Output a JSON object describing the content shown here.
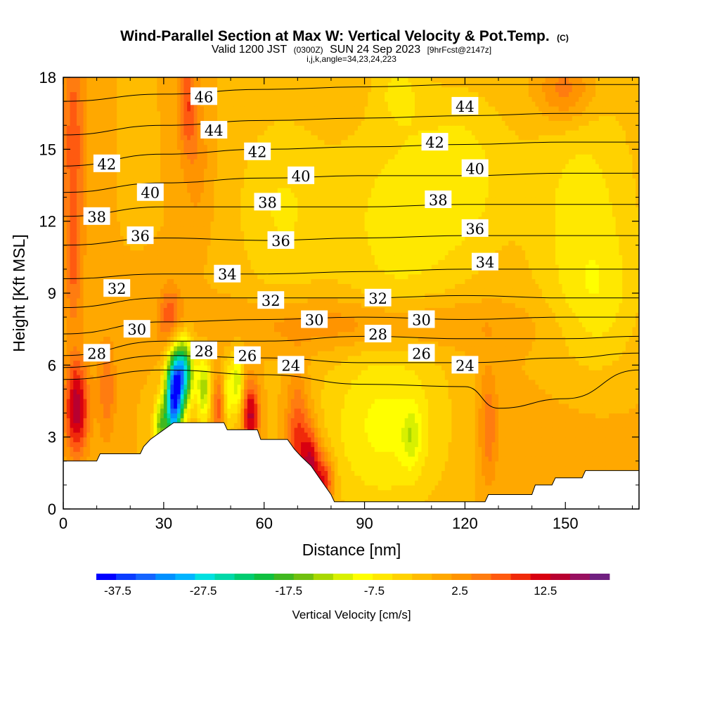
{
  "header": {
    "title": "Wind-Parallel Section at Max W: Vertical Velocity & Pot.Temp.",
    "copyright": "(C)",
    "subtitle_valid": "Valid 1200 JST",
    "subtitle_z": "(0300Z)",
    "subtitle_date": "SUN 24 Sep 2023",
    "subtitle_fcst": "[9hrFcst@2147z]",
    "params": "i,j,k,angle=34,23,24,223"
  },
  "chart_data": {
    "type": "heatmap",
    "title": "Wind-Parallel Section at Max W: Vertical Velocity & Pot.Temp.",
    "xlabel": "Distance [nm]",
    "ylabel": "Height [Kft MSL]",
    "xlim": [
      0,
      172
    ],
    "ylim": [
      0,
      18
    ],
    "x_ticks": [
      0,
      30,
      60,
      90,
      120,
      150
    ],
    "x_tick_labels": [
      "0",
      "30",
      "60",
      "90",
      "120",
      "150"
    ],
    "y_ticks": [
      0,
      3,
      6,
      9,
      12,
      15,
      18
    ],
    "y_tick_labels": [
      "0",
      "3",
      "6",
      "9",
      "12",
      "15",
      "18"
    ],
    "colorbar": {
      "title": "Vertical Velocity [cm/s]",
      "labels": [
        "-37.5",
        "-27.5",
        "-17.5",
        "-7.5",
        "2.5",
        "12.5"
      ],
      "label_values": [
        -37.5,
        -27.5,
        -17.5,
        -7.5,
        2.5,
        12.5
      ],
      "min": -40,
      "max": 20,
      "step": 2.5,
      "colors": [
        "#0000ff",
        "#0a3cff",
        "#1464ff",
        "#0090ff",
        "#00b4ff",
        "#00e0e0",
        "#00d8a8",
        "#00cc70",
        "#10c040",
        "#40b820",
        "#70c010",
        "#a8d800",
        "#d8f000",
        "#ffff00",
        "#ffe800",
        "#ffd200",
        "#ffbc00",
        "#ffa800",
        "#ff9400",
        "#ff7c10",
        "#ff5a10",
        "#f02a0a",
        "#d80010",
        "#b80030",
        "#981060",
        "#702080"
      ]
    },
    "terrain": [
      [
        0,
        2.0
      ],
      [
        10,
        2.0
      ],
      [
        11,
        2.3
      ],
      [
        23,
        2.3
      ],
      [
        24,
        2.6
      ],
      [
        26,
        2.9
      ],
      [
        29,
        3.2
      ],
      [
        32,
        3.5
      ],
      [
        33,
        3.6
      ],
      [
        48,
        3.6
      ],
      [
        49,
        3.3
      ],
      [
        58,
        3.3
      ],
      [
        59,
        2.9
      ],
      [
        67,
        2.9
      ],
      [
        69,
        2.5
      ],
      [
        71,
        2.2
      ],
      [
        74,
        1.8
      ],
      [
        77,
        1.2
      ],
      [
        80,
        0.6
      ],
      [
        81,
        0.3
      ],
      [
        126,
        0.3
      ],
      [
        127,
        0.6
      ],
      [
        140,
        0.6
      ],
      [
        141,
        1.0
      ],
      [
        146,
        1.0
      ],
      [
        147,
        1.3
      ],
      [
        155,
        1.3
      ],
      [
        156,
        1.6
      ],
      [
        172,
        1.6
      ]
    ],
    "theta_contours": [
      {
        "label": "24",
        "points": [
          [
            0,
            5.4
          ],
          [
            30,
            5.8
          ],
          [
            60,
            5.6
          ],
          [
            90,
            5.2
          ],
          [
            120,
            5.1
          ],
          [
            130,
            4.2
          ],
          [
            150,
            4.6
          ],
          [
            172,
            5.8
          ]
        ]
      },
      {
        "label": "26",
        "points": [
          [
            0,
            5.9
          ],
          [
            30,
            6.4
          ],
          [
            60,
            6.3
          ],
          [
            90,
            6.1
          ],
          [
            120,
            6.1
          ],
          [
            150,
            6.3
          ],
          [
            172,
            6.5
          ]
        ]
      },
      {
        "label": "28",
        "points": [
          [
            0,
            6.4
          ],
          [
            30,
            7.0
          ],
          [
            60,
            7.0
          ],
          [
            90,
            7.2
          ],
          [
            120,
            7.1
          ],
          [
            150,
            7.1
          ],
          [
            172,
            7.2
          ]
        ]
      },
      {
        "label": "30",
        "points": [
          [
            0,
            7.3
          ],
          [
            30,
            7.8
          ],
          [
            60,
            7.9
          ],
          [
            90,
            8.0
          ],
          [
            120,
            7.9
          ],
          [
            150,
            8.0
          ],
          [
            172,
            8.0
          ]
        ]
      },
      {
        "label": "32",
        "points": [
          [
            0,
            8.4
          ],
          [
            30,
            8.8
          ],
          [
            60,
            8.8
          ],
          [
            90,
            8.8
          ],
          [
            120,
            8.9
          ],
          [
            150,
            8.8
          ],
          [
            172,
            8.8
          ]
        ]
      },
      {
        "label": "34",
        "points": [
          [
            0,
            9.6
          ],
          [
            30,
            9.8
          ],
          [
            60,
            9.8
          ],
          [
            90,
            9.9
          ],
          [
            120,
            10.0
          ],
          [
            150,
            10.0
          ],
          [
            172,
            10.0
          ]
        ]
      },
      {
        "label": "36",
        "points": [
          [
            0,
            11.0
          ],
          [
            30,
            11.3
          ],
          [
            60,
            11.2
          ],
          [
            90,
            11.3
          ],
          [
            120,
            11.4
          ],
          [
            150,
            11.4
          ],
          [
            172,
            11.4
          ]
        ]
      },
      {
        "label": "38",
        "points": [
          [
            0,
            12.2
          ],
          [
            30,
            12.6
          ],
          [
            60,
            12.6
          ],
          [
            90,
            12.6
          ],
          [
            120,
            12.7
          ],
          [
            150,
            12.7
          ],
          [
            172,
            12.7
          ]
        ]
      },
      {
        "label": "40",
        "points": [
          [
            0,
            13.2
          ],
          [
            30,
            13.6
          ],
          [
            60,
            13.8
          ],
          [
            90,
            13.9
          ],
          [
            120,
            13.9
          ],
          [
            150,
            14.0
          ],
          [
            172,
            14.0
          ]
        ]
      },
      {
        "label": "42",
        "points": [
          [
            0,
            14.3
          ],
          [
            30,
            14.8
          ],
          [
            60,
            15.0
          ],
          [
            90,
            15.1
          ],
          [
            120,
            15.2
          ],
          [
            150,
            15.3
          ],
          [
            172,
            15.3
          ]
        ]
      },
      {
        "label": "44",
        "points": [
          [
            0,
            15.6
          ],
          [
            30,
            16.0
          ],
          [
            60,
            16.2
          ],
          [
            90,
            16.3
          ],
          [
            120,
            16.4
          ],
          [
            150,
            16.5
          ],
          [
            172,
            16.5
          ]
        ]
      },
      {
        "label": "46",
        "points": [
          [
            0,
            17.0
          ],
          [
            30,
            17.3
          ],
          [
            60,
            17.5
          ],
          [
            90,
            17.6
          ],
          [
            120,
            17.7
          ],
          [
            150,
            17.7
          ],
          [
            172,
            17.7
          ]
        ]
      }
    ],
    "contour_labels": [
      {
        "text": "46",
        "x": 42,
        "y": 17.2
      },
      {
        "text": "44",
        "x": 45,
        "y": 15.8
      },
      {
        "text": "44",
        "x": 120,
        "y": 16.8
      },
      {
        "text": "42",
        "x": 13,
        "y": 14.4
      },
      {
        "text": "42",
        "x": 58,
        "y": 14.9
      },
      {
        "text": "42",
        "x": 111,
        "y": 15.3
      },
      {
        "text": "40",
        "x": 26,
        "y": 13.2
      },
      {
        "text": "40",
        "x": 71,
        "y": 13.9
      },
      {
        "text": "40",
        "x": 123,
        "y": 14.2
      },
      {
        "text": "38",
        "x": 10,
        "y": 12.2
      },
      {
        "text": "38",
        "x": 61,
        "y": 12.8
      },
      {
        "text": "38",
        "x": 112,
        "y": 12.9
      },
      {
        "text": "36",
        "x": 23,
        "y": 11.4
      },
      {
        "text": "36",
        "x": 65,
        "y": 11.2
      },
      {
        "text": "36",
        "x": 123,
        "y": 11.7
      },
      {
        "text": "34",
        "x": 49,
        "y": 9.8
      },
      {
        "text": "34",
        "x": 126,
        "y": 10.3
      },
      {
        "text": "32",
        "x": 16,
        "y": 9.2
      },
      {
        "text": "32",
        "x": 62,
        "y": 8.7
      },
      {
        "text": "32",
        "x": 94,
        "y": 8.8
      },
      {
        "text": "30",
        "x": 22,
        "y": 7.5
      },
      {
        "text": "30",
        "x": 75,
        "y": 7.9
      },
      {
        "text": "30",
        "x": 107,
        "y": 7.9
      },
      {
        "text": "28",
        "x": 10,
        "y": 6.5
      },
      {
        "text": "28",
        "x": 42,
        "y": 6.6
      },
      {
        "text": "28",
        "x": 94,
        "y": 7.3
      },
      {
        "text": "26",
        "x": 55,
        "y": 6.4
      },
      {
        "text": "26",
        "x": 107,
        "y": 6.5
      },
      {
        "text": "24",
        "x": 68,
        "y": 6.0
      },
      {
        "text": "24",
        "x": 120,
        "y": 6.0
      }
    ],
    "w_field": {
      "background": 2.5,
      "features": [
        {
          "x": 4,
          "y": 4.2,
          "sx": 2.5,
          "sy": 1.4,
          "a": 17
        },
        {
          "x": 3,
          "y": 15.5,
          "sx": 2.5,
          "sy": 3.5,
          "a": 9
        },
        {
          "x": 3,
          "y": 10.0,
          "sx": 2.0,
          "sy": 2.0,
          "a": 6
        },
        {
          "x": 13,
          "y": 5.0,
          "sx": 2.0,
          "sy": 1.5,
          "a": 7
        },
        {
          "x": 33,
          "y": 4.6,
          "sx": 1.8,
          "sy": 1.3,
          "a": -38
        },
        {
          "x": 36,
          "y": 5.7,
          "sx": 2.0,
          "sy": 1.0,
          "a": -26
        },
        {
          "x": 29,
          "y": 3.5,
          "sx": 1.4,
          "sy": 0.8,
          "a": -15
        },
        {
          "x": 32,
          "y": 8.0,
          "sx": 2.5,
          "sy": 1.0,
          "a": 9
        },
        {
          "x": 37,
          "y": 17.0,
          "sx": 2.0,
          "sy": 1.5,
          "a": 9
        },
        {
          "x": 40,
          "y": 14.5,
          "sx": 3.0,
          "sy": 2.0,
          "a": 4
        },
        {
          "x": 42,
          "y": 5.0,
          "sx": 1.5,
          "sy": 1.0,
          "a": -14
        },
        {
          "x": 47,
          "y": 4.3,
          "sx": 1.8,
          "sy": 0.9,
          "a": 10
        },
        {
          "x": 49,
          "y": 4.6,
          "sx": 1.2,
          "sy": 1.0,
          "a": -12
        },
        {
          "x": 56,
          "y": 3.9,
          "sx": 1.8,
          "sy": 1.0,
          "a": 16
        },
        {
          "x": 52,
          "y": 5.3,
          "sx": 1.2,
          "sy": 1.0,
          "a": -12
        },
        {
          "x": 70,
          "y": 3.0,
          "sx": 2.5,
          "sy": 1.8,
          "a": 11
        },
        {
          "x": 74,
          "y": 2.0,
          "sx": 2.0,
          "sy": 1.0,
          "a": 14
        },
        {
          "x": 78,
          "y": 1.2,
          "sx": 2.0,
          "sy": 0.8,
          "a": 13
        },
        {
          "x": 96,
          "y": 3.3,
          "sx": 13.0,
          "sy": 2.5,
          "a": -8
        },
        {
          "x": 104,
          "y": 3.0,
          "sx": 2.0,
          "sy": 0.9,
          "a": -6
        },
        {
          "x": 127,
          "y": 3.5,
          "sx": 2.0,
          "sy": 1.8,
          "a": 7
        },
        {
          "x": 150,
          "y": 3.0,
          "sx": 18.0,
          "sy": 3.0,
          "a": 1
        },
        {
          "x": 100,
          "y": 12.0,
          "sx": 14.0,
          "sy": 3.5,
          "a": -6
        },
        {
          "x": 155,
          "y": 12.5,
          "sx": 12.0,
          "sy": 4.0,
          "a": -6
        },
        {
          "x": 120,
          "y": 14.0,
          "sx": 10.0,
          "sy": 2.5,
          "a": -5
        },
        {
          "x": 65,
          "y": 12.5,
          "sx": 10.0,
          "sy": 3.0,
          "a": -5
        },
        {
          "x": 90,
          "y": 7.7,
          "sx": 30.0,
          "sy": 0.8,
          "a": 6
        },
        {
          "x": 150,
          "y": 17.5,
          "sx": 6.0,
          "sy": 1.0,
          "a": 8
        },
        {
          "x": 100,
          "y": 17.5,
          "sx": 5.0,
          "sy": 1.0,
          "a": -4
        },
        {
          "x": 160,
          "y": 8.5,
          "sx": 8.0,
          "sy": 2.0,
          "a": -4
        }
      ]
    }
  }
}
